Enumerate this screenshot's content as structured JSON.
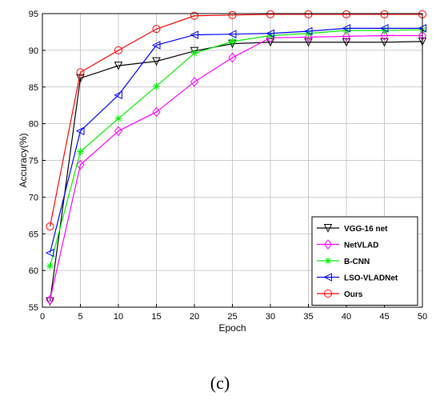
{
  "chart_data": {
    "type": "line",
    "xlabel": "Epoch",
    "ylabel": "Accuracy(%)",
    "xlim": [
      0,
      50
    ],
    "ylim": [
      55,
      95
    ],
    "xticks": [
      0,
      5,
      10,
      15,
      20,
      25,
      30,
      35,
      40,
      45,
      50
    ],
    "yticks": [
      55,
      60,
      65,
      70,
      75,
      80,
      85,
      90,
      95
    ],
    "grid": true,
    "legend_position": "bottom-right",
    "x": [
      1,
      5,
      10,
      15,
      20,
      25,
      30,
      35,
      40,
      45,
      50
    ],
    "series": [
      {
        "name": "VGG-16 net",
        "color": "#000000",
        "marker": "triangle-down",
        "values": [
          55.8,
          86.2,
          87.9,
          88.5,
          89.9,
          90.9,
          91.1,
          91.1,
          91.1,
          91.1,
          91.2
        ]
      },
      {
        "name": "NetVLAD",
        "color": "#ff00ff",
        "marker": "diamond",
        "values": [
          56.0,
          74.4,
          79.0,
          81.6,
          85.7,
          89.0,
          91.7,
          91.8,
          91.9,
          92.0,
          92.0
        ]
      },
      {
        "name": "B-CNN",
        "color": "#00ee00",
        "marker": "asterisk",
        "values": [
          60.6,
          76.2,
          80.7,
          85.1,
          89.6,
          91.2,
          92.0,
          92.3,
          92.7,
          92.7,
          92.8
        ]
      },
      {
        "name": "LSO-VLADNet",
        "color": "#0000ff",
        "marker": "triangle-left",
        "values": [
          62.4,
          79.0,
          83.9,
          90.7,
          92.1,
          92.2,
          92.3,
          92.6,
          93.0,
          93.0,
          93.0
        ]
      },
      {
        "name": "Ours",
        "color": "#ff0000",
        "marker": "circle",
        "values": [
          66.0,
          87.0,
          90.0,
          92.9,
          94.7,
          94.8,
          94.9,
          94.9,
          94.9,
          94.9,
          94.9
        ]
      }
    ]
  },
  "caption": "(c)"
}
